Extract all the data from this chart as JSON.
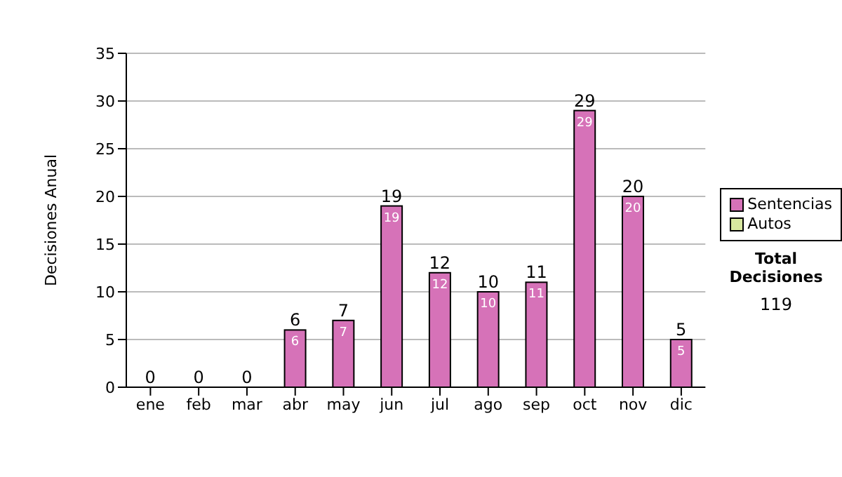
{
  "chart_data": {
    "type": "bar",
    "stacked": true,
    "ylabel": "Decisiones Anual",
    "categories": [
      "ene",
      "feb",
      "mar",
      "abr",
      "may",
      "jun",
      "jul",
      "ago",
      "sep",
      "oct",
      "nov",
      "dic"
    ],
    "series": [
      {
        "name": "Sentencias",
        "color": "#d672b8",
        "values": [
          0,
          0,
          0,
          6,
          7,
          19,
          12,
          10,
          11,
          29,
          20,
          5
        ],
        "value_labels": [
          null,
          null,
          null,
          "6",
          "7",
          "19",
          "12",
          "10",
          "11",
          "29",
          "20",
          "5"
        ]
      },
      {
        "name": "Autos",
        "color": "#d8e8a0",
        "values": [
          0,
          0,
          0,
          0,
          0,
          0,
          0,
          0,
          0,
          0,
          0,
          0
        ]
      }
    ],
    "totals": [
      "0",
      "0",
      "0",
      "6",
      "7",
      "19",
      "12",
      "10",
      "11",
      "29",
      "20",
      "5"
    ],
    "ylim": [
      0,
      35
    ],
    "yticks": [
      0,
      5,
      10,
      15,
      20,
      25,
      30,
      35
    ],
    "grid": "y",
    "legend": "right",
    "annotations": [
      "Total Decisiones",
      "119"
    ]
  }
}
